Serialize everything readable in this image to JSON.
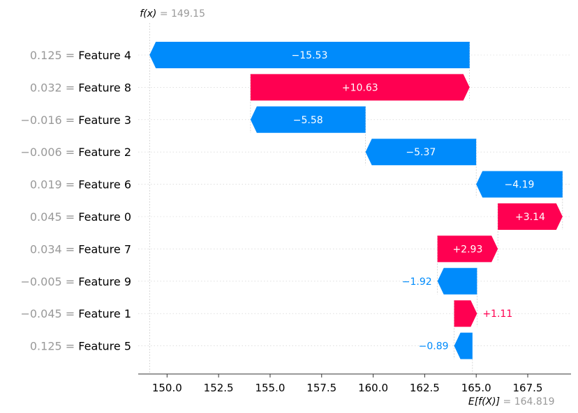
{
  "chart_data": {
    "type": "waterfall",
    "x_range": [
      148.6,
      169.6
    ],
    "x_ticks": [
      150.0,
      152.5,
      155.0,
      157.5,
      160.0,
      162.5,
      165.0,
      167.5
    ],
    "x_tick_labels": [
      "150.0",
      "152.5",
      "155.0",
      "157.5",
      "160.0",
      "162.5",
      "165.0",
      "167.5"
    ],
    "fx": {
      "symbol": "f(x)",
      "value": 149.15,
      "value_label": "149.15"
    },
    "expected": {
      "symbol": "E[f(X)]",
      "value": 164.819,
      "value_label": "164.819"
    },
    "colors": {
      "positive": "#ff0051",
      "negative": "#008bfb",
      "muted": "#999999",
      "grid": "#cccccc"
    },
    "features": [
      {
        "value_label": "0.125",
        "name": "Feature 4",
        "contribution": -15.53,
        "contribution_label": "−15.53"
      },
      {
        "value_label": "0.032",
        "name": "Feature 8",
        "contribution": 10.63,
        "contribution_label": "+10.63"
      },
      {
        "value_label": "−0.016",
        "name": "Feature 3",
        "contribution": -5.58,
        "contribution_label": "−5.58"
      },
      {
        "value_label": "−0.006",
        "name": "Feature 2",
        "contribution": -5.37,
        "contribution_label": "−5.37"
      },
      {
        "value_label": "0.019",
        "name": "Feature 6",
        "contribution": -4.19,
        "contribution_label": "−4.19"
      },
      {
        "value_label": "0.045",
        "name": "Feature 0",
        "contribution": 3.14,
        "contribution_label": "+3.14"
      },
      {
        "value_label": "0.034",
        "name": "Feature 7",
        "contribution": 2.93,
        "contribution_label": "+2.93"
      },
      {
        "value_label": "−0.005",
        "name": "Feature 9",
        "contribution": -1.92,
        "contribution_label": "−1.92"
      },
      {
        "value_label": "−0.045",
        "name": "Feature 1",
        "contribution": 1.11,
        "contribution_label": "+1.11"
      },
      {
        "value_label": "0.125",
        "name": "Feature 5",
        "contribution": -0.89,
        "contribution_label": "−0.89"
      }
    ]
  }
}
